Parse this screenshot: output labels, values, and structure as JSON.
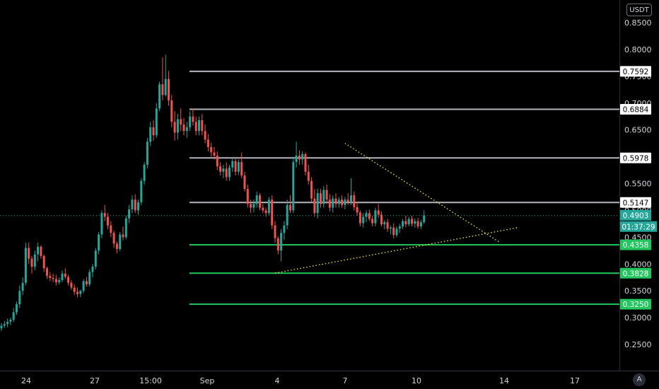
{
  "chart_data": {
    "type": "candlestick",
    "currency": "USDT",
    "auto_scale_label": "A",
    "ylim": [
      0.2,
      0.87
    ],
    "y_ticks": [
      "0.2500",
      "0.3000",
      "0.3500",
      "0.4000",
      "0.4500",
      "0.5000",
      "0.5500",
      "0.6000",
      "0.6500",
      "0.7000",
      "0.7500",
      "0.8000",
      "0.8500"
    ],
    "x_ticks": [
      "24",
      "27",
      "15:00",
      "Sep",
      "4",
      "7",
      "10",
      "14",
      "17"
    ],
    "last_price": {
      "value": 0.4903,
      "label": "0.4903",
      "countdown": "01:37:29"
    },
    "horizontal_levels": [
      {
        "value": 0.7592,
        "label": "0.7592",
        "color": "#b2b5be"
      },
      {
        "value": 0.6884,
        "label": "0.6884",
        "color": "#b2b5be"
      },
      {
        "value": 0.5978,
        "label": "0.5978",
        "color": "#b2b5be"
      },
      {
        "value": 0.5147,
        "label": "0.5147",
        "color": "#b2b5be"
      },
      {
        "value": 0.4358,
        "label": "0.4358",
        "color": "#22c55e"
      },
      {
        "value": 0.3828,
        "label": "0.3828",
        "color": "#22c55e"
      },
      {
        "value": 0.325,
        "label": "0.3250",
        "color": "#22c55e"
      }
    ],
    "trend_lines": [
      {
        "from": [
          113,
          0.625
        ],
        "to": [
          164,
          0.44
        ],
        "color": "#ffeb3b",
        "style": "dotted"
      },
      {
        "from": [
          90,
          0.383
        ],
        "to": [
          170,
          0.468
        ],
        "color": "#ffeb3b",
        "style": "dotted"
      }
    ],
    "colors": {
      "up": "#26a69a",
      "down": "#ef5350",
      "background": "#000000"
    },
    "candles": [
      [
        0.28,
        0.29,
        0.275,
        0.285
      ],
      [
        0.285,
        0.294,
        0.281,
        0.288
      ],
      [
        0.288,
        0.298,
        0.282,
        0.292
      ],
      [
        0.292,
        0.3,
        0.286,
        0.296
      ],
      [
        0.296,
        0.318,
        0.292,
        0.31
      ],
      [
        0.31,
        0.33,
        0.305,
        0.325
      ],
      [
        0.325,
        0.36,
        0.318,
        0.35
      ],
      [
        0.35,
        0.375,
        0.342,
        0.365
      ],
      [
        0.365,
        0.44,
        0.36,
        0.43
      ],
      [
        0.43,
        0.44,
        0.4,
        0.41
      ],
      [
        0.41,
        0.415,
        0.382,
        0.395
      ],
      [
        0.395,
        0.425,
        0.388,
        0.418
      ],
      [
        0.418,
        0.44,
        0.405,
        0.432
      ],
      [
        0.432,
        0.435,
        0.41,
        0.415
      ],
      [
        0.415,
        0.418,
        0.385,
        0.392
      ],
      [
        0.392,
        0.395,
        0.372,
        0.378
      ],
      [
        0.378,
        0.385,
        0.368,
        0.374
      ],
      [
        0.374,
        0.382,
        0.366,
        0.372
      ],
      [
        0.372,
        0.38,
        0.36,
        0.366
      ],
      [
        0.366,
        0.375,
        0.362,
        0.37
      ],
      [
        0.37,
        0.388,
        0.366,
        0.382
      ],
      [
        0.382,
        0.392,
        0.372,
        0.376
      ],
      [
        0.376,
        0.38,
        0.36,
        0.365
      ],
      [
        0.365,
        0.37,
        0.352,
        0.356
      ],
      [
        0.356,
        0.362,
        0.342,
        0.348
      ],
      [
        0.348,
        0.356,
        0.338,
        0.344
      ],
      [
        0.344,
        0.352,
        0.338,
        0.35
      ],
      [
        0.35,
        0.372,
        0.346,
        0.368
      ],
      [
        0.368,
        0.376,
        0.358,
        0.362
      ],
      [
        0.362,
        0.39,
        0.358,
        0.385
      ],
      [
        0.385,
        0.4,
        0.375,
        0.395
      ],
      [
        0.395,
        0.43,
        0.39,
        0.425
      ],
      [
        0.425,
        0.46,
        0.418,
        0.455
      ],
      [
        0.455,
        0.5,
        0.448,
        0.495
      ],
      [
        0.495,
        0.51,
        0.48,
        0.488
      ],
      [
        0.488,
        0.495,
        0.465,
        0.472
      ],
      [
        0.472,
        0.48,
        0.45,
        0.458
      ],
      [
        0.458,
        0.462,
        0.43,
        0.438
      ],
      [
        0.438,
        0.442,
        0.42,
        0.428
      ],
      [
        0.428,
        0.46,
        0.424,
        0.455
      ],
      [
        0.455,
        0.47,
        0.444,
        0.45
      ],
      [
        0.45,
        0.49,
        0.446,
        0.485
      ],
      [
        0.485,
        0.51,
        0.476,
        0.502
      ],
      [
        0.502,
        0.528,
        0.495,
        0.52
      ],
      [
        0.52,
        0.53,
        0.495,
        0.5
      ],
      [
        0.5,
        0.52,
        0.492,
        0.515
      ],
      [
        0.515,
        0.56,
        0.51,
        0.555
      ],
      [
        0.555,
        0.59,
        0.548,
        0.585
      ],
      [
        0.585,
        0.635,
        0.578,
        0.628
      ],
      [
        0.628,
        0.665,
        0.62,
        0.655
      ],
      [
        0.655,
        0.668,
        0.63,
        0.64
      ],
      [
        0.64,
        0.7,
        0.635,
        0.69
      ],
      [
        0.69,
        0.74,
        0.685,
        0.735
      ],
      [
        0.735,
        0.785,
        0.705,
        0.715
      ],
      [
        0.715,
        0.79,
        0.712,
        0.745
      ],
      [
        0.745,
        0.76,
        0.695,
        0.705
      ],
      [
        0.705,
        0.715,
        0.655,
        0.665
      ],
      [
        0.665,
        0.685,
        0.63,
        0.645
      ],
      [
        0.645,
        0.68,
        0.632,
        0.67
      ],
      [
        0.67,
        0.69,
        0.648,
        0.66
      ],
      [
        0.66,
        0.672,
        0.64,
        0.648
      ],
      [
        0.648,
        0.665,
        0.635,
        0.655
      ],
      [
        0.655,
        0.685,
        0.648,
        0.675
      ],
      [
        0.675,
        0.69,
        0.658,
        0.665
      ],
      [
        0.665,
        0.675,
        0.64,
        0.648
      ],
      [
        0.648,
        0.675,
        0.64,
        0.668
      ],
      [
        0.668,
        0.68,
        0.64,
        0.648
      ],
      [
        0.648,
        0.66,
        0.625,
        0.632
      ],
      [
        0.632,
        0.642,
        0.61,
        0.618
      ],
      [
        0.618,
        0.626,
        0.6,
        0.608
      ],
      [
        0.608,
        0.618,
        0.595,
        0.602
      ],
      [
        0.602,
        0.61,
        0.575,
        0.582
      ],
      [
        0.582,
        0.59,
        0.565,
        0.572
      ],
      [
        0.572,
        0.585,
        0.56,
        0.578
      ],
      [
        0.578,
        0.59,
        0.555,
        0.562
      ],
      [
        0.562,
        0.585,
        0.555,
        0.58
      ],
      [
        0.58,
        0.6,
        0.572,
        0.592
      ],
      [
        0.592,
        0.6,
        0.565,
        0.572
      ],
      [
        0.572,
        0.595,
        0.566,
        0.59
      ],
      [
        0.59,
        0.608,
        0.56,
        0.565
      ],
      [
        0.565,
        0.572,
        0.535,
        0.54
      ],
      [
        0.54,
        0.548,
        0.505,
        0.512
      ],
      [
        0.512,
        0.52,
        0.495,
        0.505
      ],
      [
        0.505,
        0.52,
        0.496,
        0.512
      ],
      [
        0.512,
        0.535,
        0.505,
        0.528
      ],
      [
        0.528,
        0.532,
        0.5,
        0.505
      ],
      [
        0.505,
        0.512,
        0.495,
        0.5
      ],
      [
        0.5,
        0.505,
        0.488,
        0.495
      ],
      [
        0.495,
        0.525,
        0.49,
        0.52
      ],
      [
        0.52,
        0.528,
        0.465,
        0.472
      ],
      [
        0.472,
        0.48,
        0.44,
        0.448
      ],
      [
        0.448,
        0.452,
        0.418,
        0.425
      ],
      [
        0.425,
        0.465,
        0.405,
        0.458
      ],
      [
        0.458,
        0.48,
        0.445,
        0.472
      ],
      [
        0.472,
        0.52,
        0.465,
        0.51
      ],
      [
        0.51,
        0.528,
        0.495,
        0.5
      ],
      [
        0.5,
        0.6,
        0.495,
        0.59
      ],
      [
        0.59,
        0.628,
        0.58,
        0.602
      ],
      [
        0.602,
        0.612,
        0.585,
        0.595
      ],
      [
        0.595,
        0.61,
        0.585,
        0.605
      ],
      [
        0.605,
        0.608,
        0.565,
        0.572
      ],
      [
        0.572,
        0.585,
        0.548,
        0.555
      ],
      [
        0.555,
        0.562,
        0.515,
        0.522
      ],
      [
        0.522,
        0.54,
        0.488,
        0.495
      ],
      [
        0.495,
        0.54,
        0.485,
        0.532
      ],
      [
        0.532,
        0.54,
        0.505,
        0.512
      ],
      [
        0.512,
        0.545,
        0.505,
        0.538
      ],
      [
        0.538,
        0.548,
        0.512,
        0.52
      ],
      [
        0.52,
        0.53,
        0.498,
        0.505
      ],
      [
        0.505,
        0.528,
        0.496,
        0.522
      ],
      [
        0.522,
        0.532,
        0.505,
        0.512
      ],
      [
        0.512,
        0.525,
        0.505,
        0.52
      ],
      [
        0.52,
        0.528,
        0.505,
        0.51
      ],
      [
        0.51,
        0.525,
        0.502,
        0.52
      ],
      [
        0.52,
        0.532,
        0.51,
        0.516
      ],
      [
        0.516,
        0.56,
        0.51,
        0.528
      ],
      [
        0.528,
        0.535,
        0.5,
        0.506
      ],
      [
        0.506,
        0.515,
        0.49,
        0.496
      ],
      [
        0.496,
        0.5,
        0.47,
        0.476
      ],
      [
        0.476,
        0.495,
        0.468,
        0.488
      ],
      [
        0.488,
        0.5,
        0.478,
        0.495
      ],
      [
        0.495,
        0.502,
        0.48,
        0.484
      ],
      [
        0.484,
        0.49,
        0.47,
        0.476
      ],
      [
        0.476,
        0.505,
        0.47,
        0.5
      ],
      [
        0.5,
        0.512,
        0.486,
        0.492
      ],
      [
        0.492,
        0.498,
        0.47,
        0.474
      ],
      [
        0.474,
        0.482,
        0.465,
        0.478
      ],
      [
        0.478,
        0.484,
        0.46,
        0.466
      ],
      [
        0.466,
        0.472,
        0.455,
        0.468
      ],
      [
        0.468,
        0.476,
        0.448,
        0.454
      ],
      [
        0.454,
        0.47,
        0.45,
        0.466
      ],
      [
        0.466,
        0.475,
        0.458,
        0.47
      ],
      [
        0.47,
        0.484,
        0.465,
        0.48
      ],
      [
        0.48,
        0.49,
        0.468,
        0.474
      ],
      [
        0.474,
        0.488,
        0.47,
        0.484
      ],
      [
        0.484,
        0.49,
        0.47,
        0.475
      ],
      [
        0.475,
        0.485,
        0.468,
        0.48
      ],
      [
        0.48,
        0.486,
        0.466,
        0.47
      ],
      [
        0.47,
        0.482,
        0.465,
        0.478
      ],
      [
        0.478,
        0.5,
        0.475,
        0.4903
      ]
    ]
  }
}
